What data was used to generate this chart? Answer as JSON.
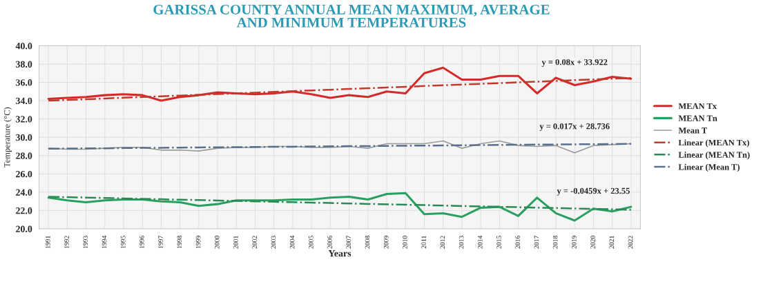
{
  "chart_data": {
    "type": "line",
    "title": "GARISSA COUNTY ANNUAL MEAN MAXIMUM, AVERAGE\nAND MINIMUM TEMPERATURES",
    "xlabel": "Years",
    "ylabel": "Temperature (°C)",
    "categories": [
      "1991",
      "1992",
      "1993",
      "1994",
      "1995",
      "1996",
      "1997",
      "1998",
      "1999",
      "2000",
      "2001",
      "2002",
      "2003",
      "2004",
      "2005",
      "2006",
      "2007",
      "2008",
      "2009",
      "2010",
      "2011",
      "2012",
      "2013",
      "2014",
      "2015",
      "2016",
      "2017",
      "2018",
      "2019",
      "2020",
      "2021",
      "2022"
    ],
    "ylim": [
      20,
      40
    ],
    "yticks": [
      {
        "value": 20,
        "label": "20.0"
      },
      {
        "value": 22,
        "label": "22.0"
      },
      {
        "value": 24,
        "label": "24.0"
      },
      {
        "value": 26,
        "label": "26.0"
      },
      {
        "value": 28,
        "label": "28.0"
      },
      {
        "value": 30,
        "label": "30.0"
      },
      {
        "value": 32,
        "label": "32.0"
      },
      {
        "value": 34,
        "label": "34.0"
      },
      {
        "value": 36,
        "label": "36.0"
      },
      {
        "value": 38,
        "label": "38.0"
      },
      {
        "value": 40,
        "label": "40.0"
      }
    ],
    "grid": true,
    "legend": "right",
    "marker": "none",
    "series": [
      {
        "name": "MEAN Tx",
        "color": "#d42a2a",
        "line_style": "solid",
        "values": [
          34.2,
          34.3,
          34.4,
          34.6,
          34.7,
          34.6,
          34.0,
          34.4,
          34.6,
          34.9,
          34.8,
          34.7,
          34.8,
          35.0,
          34.7,
          34.3,
          34.6,
          34.4,
          35.0,
          34.8,
          37.0,
          37.6,
          36.3,
          36.3,
          36.7,
          36.7,
          34.8,
          36.5,
          35.7,
          36.1,
          36.6,
          36.4
        ]
      },
      {
        "name": "MEAN Tn",
        "color": "#2aa060",
        "line_style": "solid",
        "values": [
          23.4,
          23.1,
          22.9,
          23.1,
          23.2,
          23.2,
          23.0,
          22.9,
          22.5,
          22.7,
          23.1,
          23.1,
          23.1,
          23.2,
          23.2,
          23.4,
          23.5,
          23.2,
          23.8,
          23.9,
          21.6,
          21.7,
          21.3,
          22.3,
          22.4,
          21.4,
          23.4,
          21.7,
          20.9,
          22.2,
          21.9,
          22.4
        ]
      },
      {
        "name": "Mean T",
        "color": "#9a9a9a",
        "line_style": "solid",
        "values": [
          28.8,
          28.7,
          28.7,
          28.8,
          28.9,
          28.9,
          28.6,
          28.6,
          28.5,
          28.8,
          28.9,
          28.9,
          29.0,
          29.0,
          28.9,
          28.9,
          29.0,
          28.8,
          29.3,
          29.3,
          29.3,
          29.6,
          28.8,
          29.3,
          29.6,
          29.1,
          29.0,
          29.1,
          28.3,
          29.1,
          29.2,
          29.3
        ]
      },
      {
        "name": "Linear (MEAN Tx)",
        "color": "#c0392b",
        "line_style": "dashdot",
        "values": [
          34.0,
          34.08,
          34.16,
          34.24,
          34.32,
          34.4,
          34.48,
          34.56,
          34.64,
          34.72,
          34.8,
          34.88,
          34.96,
          35.04,
          35.12,
          35.2,
          35.28,
          35.36,
          35.44,
          35.52,
          35.6,
          35.68,
          35.76,
          35.84,
          35.92,
          36.0,
          36.08,
          36.16,
          36.24,
          36.32,
          36.4,
          36.48
        ]
      },
      {
        "name": "Linear (MEAN Tn)",
        "color": "#2a8a55",
        "line_style": "dashdot",
        "values": [
          23.5,
          23.46,
          23.41,
          23.37,
          23.32,
          23.27,
          23.23,
          23.18,
          23.14,
          23.09,
          23.05,
          23.0,
          22.95,
          22.91,
          22.86,
          22.82,
          22.77,
          22.72,
          22.68,
          22.63,
          22.59,
          22.54,
          22.49,
          22.45,
          22.4,
          22.36,
          22.31,
          22.27,
          22.22,
          22.17,
          22.13,
          22.08
        ]
      },
      {
        "name": "Linear (Mean T)",
        "color": "#5a6f8a",
        "line_style": "dashdot",
        "values": [
          28.75,
          28.77,
          28.79,
          28.8,
          28.82,
          28.84,
          28.85,
          28.87,
          28.89,
          28.91,
          28.92,
          28.94,
          28.96,
          28.97,
          28.99,
          29.01,
          29.03,
          29.04,
          29.06,
          29.08,
          29.09,
          29.11,
          29.13,
          29.14,
          29.16,
          29.18,
          29.2,
          29.21,
          29.23,
          29.25,
          29.26,
          29.28
        ]
      }
    ],
    "annotations": [
      {
        "text": "y = 0.08x + 33.922",
        "x": "2019",
        "y": 36.24
      },
      {
        "text": "y = 0.017x + 28.736",
        "x": "2019",
        "y": 29.23
      },
      {
        "text": "y = -0.0459x + 23.55",
        "x": "2020",
        "y": 22.17
      }
    ]
  }
}
